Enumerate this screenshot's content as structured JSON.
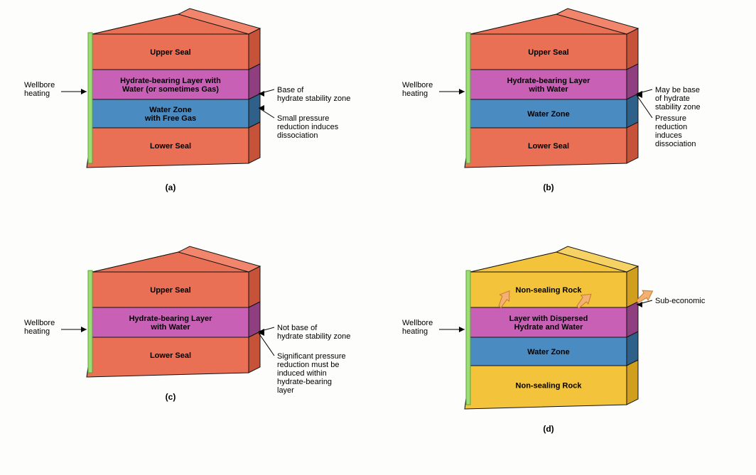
{
  "colors": {
    "seal_face": "#e96f55",
    "seal_top": "#f2866c",
    "seal_side": "#c7523a",
    "hydrate_face": "#c861b6",
    "hydrate_side": "#8f3e80",
    "water_face": "#4a8bc2",
    "water_side": "#2f608a",
    "wellbore": "#9edc76",
    "wellbore_dark": "#5aa33d",
    "nonseal_face": "#f2c33b",
    "nonseal_side": "#d19f1e",
    "nonseal_top": "#f6d264",
    "outline": "#111111",
    "arrow_fill": "#f2b074",
    "arrow_stroke": "#c77b2a"
  },
  "font": {
    "layer_label_size": 11,
    "annot_size": 11,
    "caption_size": 12
  },
  "panels": {
    "a": {
      "caption": "(a)",
      "layers": [
        {
          "key": "upper_seal",
          "label": "Upper Seal"
        },
        {
          "key": "hydrate",
          "label": "Hydrate-bearing Layer with\nWater (or sometimes Gas)"
        },
        {
          "key": "water",
          "label": "Water Zone\nwith Free Gas"
        },
        {
          "key": "lower_seal",
          "label": "Lower Seal"
        }
      ],
      "left_label": "Wellbore\nheating",
      "right_annots": [
        {
          "text": "Base of\nhydrate stability zone",
          "target": "hydrate_bottom"
        },
        {
          "text": "Small pressure\nreduction induces\ndissociation",
          "target": "water_mid"
        }
      ]
    },
    "b": {
      "caption": "(b)",
      "layers": [
        {
          "key": "upper_seal",
          "label": "Upper Seal"
        },
        {
          "key": "hydrate",
          "label": "Hydrate-bearing Layer\nwith Water"
        },
        {
          "key": "water",
          "label": "Water Zone"
        },
        {
          "key": "lower_seal",
          "label": "Lower Seal"
        }
      ],
      "left_label": "Wellbore\nheating",
      "right_annots": [
        {
          "text": "May be base\nof hydrate\nstability zone",
          "target": "hydrate_bottom"
        },
        {
          "text": "Pressure\nreduction\ninduces\ndissociation",
          "target": "hydrate_bottom2"
        }
      ]
    },
    "c": {
      "caption": "(c)",
      "layers": [
        {
          "key": "upper_seal",
          "label": "Upper Seal"
        },
        {
          "key": "hydrate",
          "label": "Hydrate-bearing Layer\nwith Water"
        },
        {
          "key": "lower_seal",
          "label": "Lower Seal"
        }
      ],
      "left_label": "Wellbore\nheating",
      "right_annots": [
        {
          "text": "Not base of\nhydrate stability zone",
          "target": "hydrate_bottom"
        },
        {
          "text": "Significant pressure\nreduction must be\ninduced within\nhydrate-bearing\nlayer",
          "target": "hydrate_bottom2"
        }
      ]
    },
    "d": {
      "caption": "(d)",
      "layers": [
        {
          "key": "upper_nonseal",
          "label": "Non-sealing Rock"
        },
        {
          "key": "hydrate",
          "label": "Layer with Dispersed\nHydrate and Water"
        },
        {
          "key": "water",
          "label": "Water Zone"
        },
        {
          "key": "lower_nonseal",
          "label": "Non-sealing Rock"
        }
      ],
      "left_label": "Wellbore\nheating",
      "right_annots": [
        {
          "text": "Sub-economic",
          "target": "arrow_right"
        }
      ],
      "has_escape_arrows": true
    }
  }
}
